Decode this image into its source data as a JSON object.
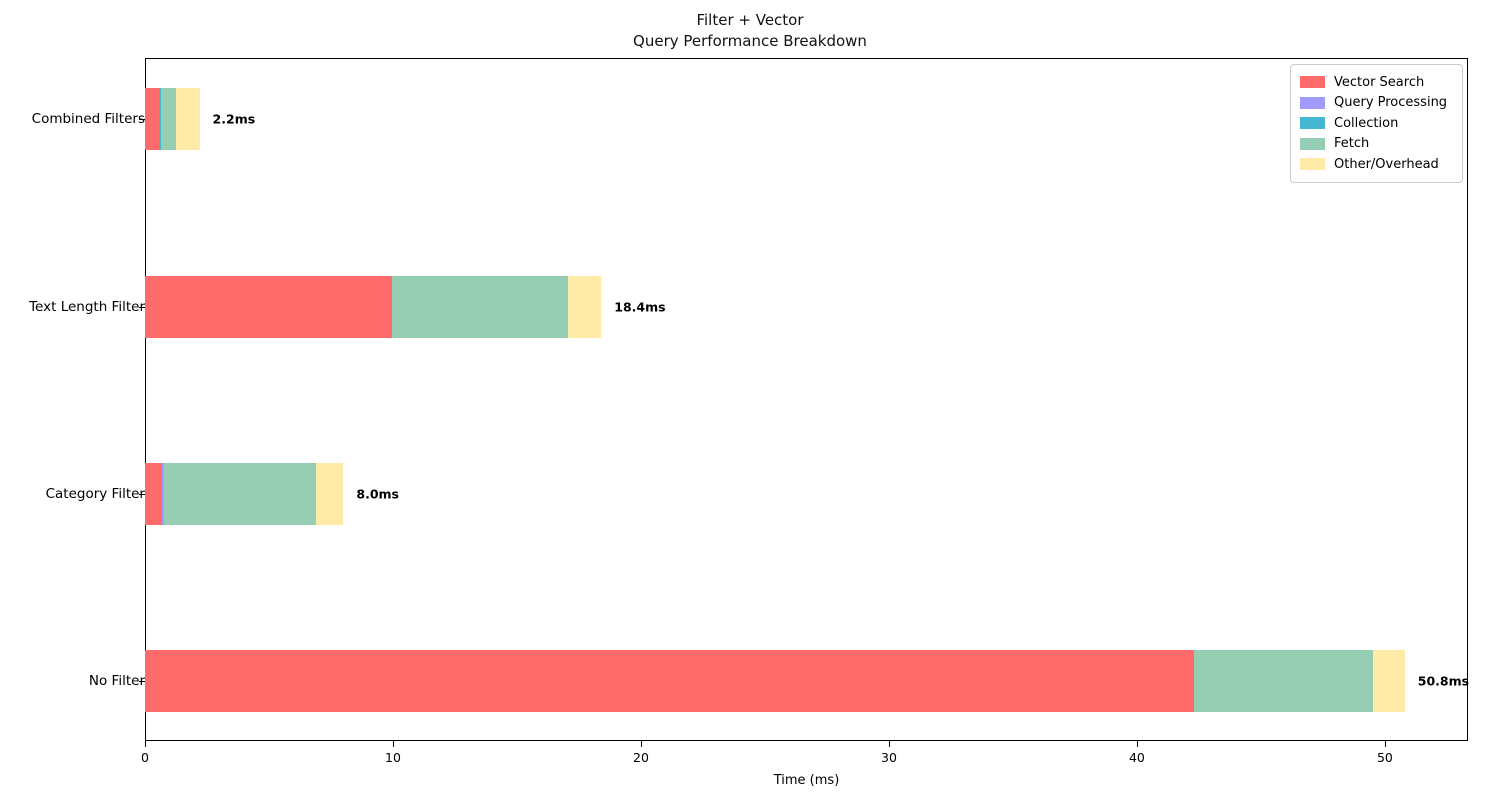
{
  "title": {
    "line1": "Filter + Vector",
    "line2": "Query Performance Breakdown"
  },
  "chart_data": {
    "type": "bar",
    "orientation": "horizontal",
    "stacked": true,
    "grid": false,
    "categories": [
      "Combined Filters",
      "Text Length Filter",
      "Category Filter",
      "No Filter"
    ],
    "series": [
      {
        "name": "Vector Search",
        "color": "#FF6B6B",
        "values": [
          0.6,
          9.9,
          0.7,
          42.3
        ]
      },
      {
        "name": "Query Processing",
        "color": "#A29BFE",
        "values": [
          0.0,
          0.0,
          0.05,
          0.0
        ]
      },
      {
        "name": "Collection",
        "color": "#45B7D1",
        "values": [
          0.05,
          0.05,
          0.0,
          0.0
        ]
      },
      {
        "name": "Fetch",
        "color": "#96CEB4",
        "values": [
          0.6,
          7.1,
          6.15,
          7.2
        ]
      },
      {
        "name": "Other/Overhead",
        "color": "#FFEAA7",
        "values": [
          0.95,
          1.35,
          1.1,
          1.3
        ]
      }
    ],
    "totals": [
      2.2,
      18.4,
      8.0,
      50.8
    ],
    "total_labels": [
      "2.2ms",
      "18.4ms",
      "8.0ms",
      "50.8ms"
    ],
    "xlabel": "Time (ms)",
    "xticks": [
      0,
      10,
      20,
      30,
      40,
      50
    ],
    "xlim": [
      0,
      53.35
    ],
    "legend_position": "upper right"
  }
}
